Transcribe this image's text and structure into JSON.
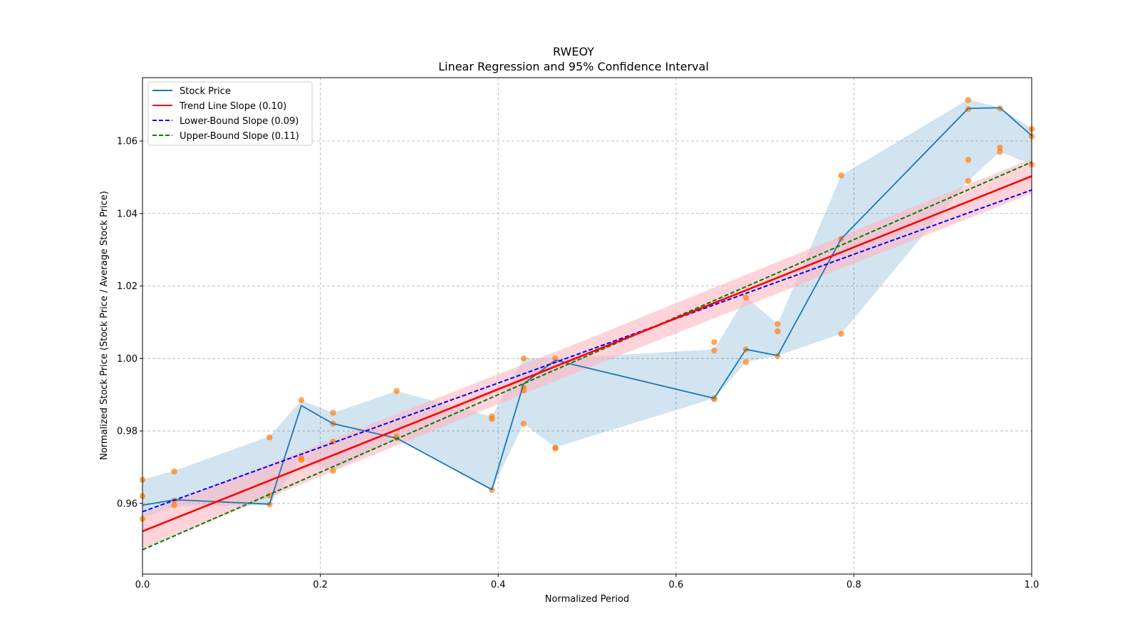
{
  "chart_data": {
    "type": "line",
    "title": "RWEOY",
    "subtitle": "Linear Regression and 95% Confidence Interval",
    "xlabel": "Normalized Period",
    "ylabel": "Normalized Stock Price (Stock Price / Average Stock Price)",
    "xlim": [
      0,
      1
    ],
    "ylim": [
      0.9405,
      1.0775
    ],
    "grid": true,
    "legend_position": "top-left",
    "x_ticks": [
      {
        "value": 0.0,
        "label": "0.0"
      },
      {
        "value": 0.2,
        "label": "0.2"
      },
      {
        "value": 0.4,
        "label": "0.4"
      },
      {
        "value": 0.6,
        "label": "0.6"
      },
      {
        "value": 0.8,
        "label": "0.8"
      },
      {
        "value": 1.0,
        "label": "1.0"
      }
    ],
    "y_ticks": [
      {
        "value": 0.96,
        "label": "0.96"
      },
      {
        "value": 0.98,
        "label": "0.98"
      },
      {
        "value": 1.0,
        "label": "1.00"
      },
      {
        "value": 1.02,
        "label": "1.02"
      },
      {
        "value": 1.04,
        "label": "1.04"
      },
      {
        "value": 1.06,
        "label": "1.06"
      }
    ],
    "colors": {
      "stock": "#1f77b4",
      "band": "#1f77b4",
      "scatter": "#ff7f0e",
      "trend": "#ff0000",
      "trend_ci": "#ffb6c1",
      "lower": "#0000ff",
      "upper": "#008000",
      "grid": "#b0b0b0"
    },
    "stock_price": {
      "name": "Stock Price",
      "x": [
        0.0,
        0.0357,
        0.1429,
        0.1786,
        0.2143,
        0.2857,
        0.3929,
        0.4286,
        0.4643,
        0.6429,
        0.6786,
        0.7143,
        0.7857,
        0.9286,
        0.9643,
        1.0
      ],
      "y": [
        0.9595,
        0.961,
        0.9598,
        0.987,
        0.982,
        0.978,
        0.9638,
        0.993,
        0.9995,
        0.989,
        1.0025,
        1.0008,
        1.033,
        1.069,
        1.0692,
        1.0615
      ],
      "band_upper": [
        0.9665,
        0.969,
        0.9785,
        0.9885,
        0.985,
        0.991,
        0.984,
        1.0,
        1.0,
        1.0025,
        1.017,
        1.0095,
        1.0505,
        1.0715,
        1.0692,
        1.0635
      ],
      "band_lower": [
        0.956,
        0.9592,
        0.9595,
        0.972,
        0.969,
        0.978,
        0.9638,
        0.982,
        0.9755,
        0.989,
        0.999,
        1.0008,
        1.0068,
        1.049,
        1.057,
        1.0535
      ]
    },
    "scatter": {
      "x": [
        0.0,
        0.0,
        0.0,
        0.0357,
        0.0357,
        0.0357,
        0.1429,
        0.1429,
        0.1429,
        0.1786,
        0.1786,
        0.1786,
        0.2143,
        0.2143,
        0.2143,
        0.2143,
        0.2857,
        0.2857,
        0.2857,
        0.3929,
        0.3929,
        0.3929,
        0.4286,
        0.4286,
        0.4286,
        0.4286,
        0.4643,
        0.4643,
        0.4643,
        0.6429,
        0.6429,
        0.6429,
        0.6429,
        0.6786,
        0.6786,
        0.6786,
        0.7143,
        0.7143,
        0.7143,
        0.7857,
        0.7857,
        0.7857,
        0.9286,
        0.9286,
        0.9286,
        0.9286,
        0.9643,
        0.9643,
        0.9643,
        1.0,
        1.0,
        1.0
      ],
      "y": [
        0.9665,
        0.962,
        0.9557,
        0.9688,
        0.9608,
        0.9595,
        0.9782,
        0.9622,
        0.9597,
        0.9885,
        0.9725,
        0.972,
        0.985,
        0.982,
        0.977,
        0.969,
        0.991,
        0.9785,
        0.978,
        0.984,
        0.9833,
        0.9637,
        1.0,
        0.992,
        0.9912,
        0.982,
        1.0,
        0.9753,
        0.9752,
        1.0045,
        1.0022,
        0.989,
        0.9888,
        1.0168,
        1.0025,
        0.999,
        1.0095,
        1.0075,
        1.0007,
        1.0505,
        1.033,
        1.0068,
        1.0713,
        1.0688,
        1.0548,
        1.049,
        1.069,
        1.0582,
        1.057,
        1.0633,
        1.0613,
        1.0535
      ]
    },
    "trend_line": {
      "name": "Trend Line Slope (0.10)",
      "x": [
        0,
        1
      ],
      "y": [
        0.9523,
        1.0503
      ]
    },
    "trend_ci": {
      "x": [
        0,
        0.5,
        1
      ],
      "upper": [
        0.9571,
        1.0053,
        1.0551
      ],
      "lower": [
        0.9475,
        0.9973,
        1.0455
      ]
    },
    "lower_bound": {
      "name": "Lower-Bound Slope (0.09)",
      "x": [
        0,
        1
      ],
      "y": [
        0.9577,
        1.0465
      ]
    },
    "upper_bound": {
      "name": "Upper-Bound Slope (0.11)",
      "x": [
        0,
        1
      ],
      "y": [
        0.9472,
        1.0542
      ]
    }
  }
}
